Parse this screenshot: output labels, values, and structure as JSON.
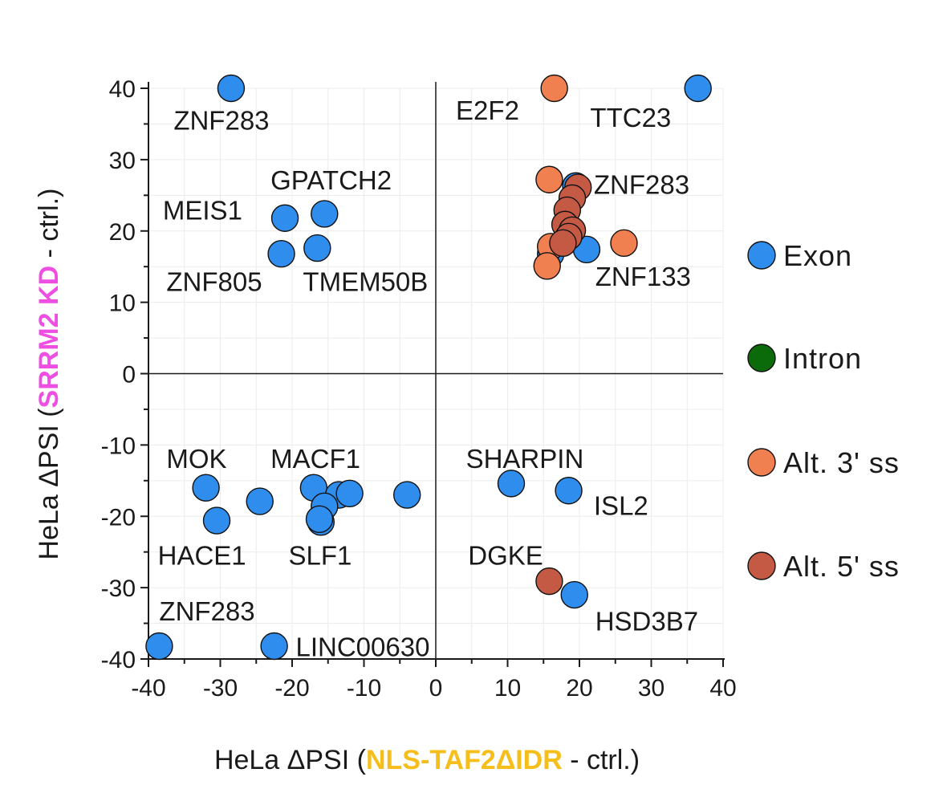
{
  "chart_data": {
    "type": "scatter",
    "xlim": [
      -40,
      40
    ],
    "ylim": [
      -40,
      40
    ],
    "xticks": [
      -40,
      -30,
      -20,
      -10,
      0,
      10,
      20,
      30,
      40
    ],
    "yticks": [
      -40,
      -30,
      -20,
      -10,
      0,
      10,
      20,
      30,
      40
    ],
    "grid": true,
    "legend_position": "right",
    "xlabel": {
      "prefix": "HeLa ΔPSI (",
      "highlight": "NLS-TAF2ΔIDR",
      "suffix": " - ctrl.)",
      "highlight_color": "#f6be1a"
    },
    "ylabel": {
      "prefix": "HeLa ΔPSI (",
      "highlight": "SRRM2 KD",
      "suffix": " - ctrl.)",
      "highlight_color": "#ee4fe2"
    },
    "legend": [
      {
        "name": "Exon",
        "color": "#2f8eed"
      },
      {
        "name": "Intron",
        "color": "#0b6b0b"
      },
      {
        "name": "Alt.  3' ss",
        "color": "#f0804f"
      },
      {
        "name": "Alt.  5' ss",
        "color": "#c45a44"
      }
    ],
    "series": [
      {
        "name": "Exon",
        "color": "#2f8eed",
        "points": [
          {
            "x": -28.5,
            "y": 40
          },
          {
            "x": -21,
            "y": 21.8
          },
          {
            "x": -15.5,
            "y": 22.4
          },
          {
            "x": -21.5,
            "y": 16.8
          },
          {
            "x": -16.5,
            "y": 17.6
          },
          {
            "x": 36.5,
            "y": 40
          },
          {
            "x": 19.5,
            "y": 26.3
          },
          {
            "x": 16,
            "y": 16.8
          },
          {
            "x": 21,
            "y": 17.4
          },
          {
            "x": -32,
            "y": -16
          },
          {
            "x": -30.5,
            "y": -20.6
          },
          {
            "x": -24.5,
            "y": -17.9
          },
          {
            "x": -17,
            "y": -16
          },
          {
            "x": -13.5,
            "y": -17
          },
          {
            "x": -12,
            "y": -16.8
          },
          {
            "x": -4,
            "y": -17
          },
          {
            "x": -15.5,
            "y": -18.6
          },
          {
            "x": -16,
            "y": -20.8
          },
          {
            "x": -16.2,
            "y": -20.4
          },
          {
            "x": 10.5,
            "y": -15.4
          },
          {
            "x": 18.5,
            "y": -16.4
          },
          {
            "x": 19.3,
            "y": -31
          },
          {
            "x": -38.5,
            "y": -38.2
          },
          {
            "x": -22.5,
            "y": -38.2
          }
        ]
      },
      {
        "name": "Alt. 3' ss",
        "color": "#f0804f",
        "points": [
          {
            "x": 16.5,
            "y": 40
          },
          {
            "x": 15.8,
            "y": 27.2
          },
          {
            "x": 26.2,
            "y": 18.3
          },
          {
            "x": 16,
            "y": 17.8
          },
          {
            "x": 15.5,
            "y": 15.1
          }
        ]
      },
      {
        "name": "Alt. 5' ss",
        "color": "#c45a44",
        "points": [
          {
            "x": 19.8,
            "y": 26.1
          },
          {
            "x": 19,
            "y": 24.6
          },
          {
            "x": 18.3,
            "y": 22.9
          },
          {
            "x": 18,
            "y": 20.9
          },
          {
            "x": 19,
            "y": 20.1
          },
          {
            "x": 18.5,
            "y": 19.2
          },
          {
            "x": 17.7,
            "y": 18.3
          },
          {
            "x": 15.8,
            "y": -29.1
          }
        ]
      }
    ],
    "annotations": [
      {
        "text": "ZNF283",
        "x": -36.5,
        "y": 34.2
      },
      {
        "text": "GPATCH2",
        "x": -23,
        "y": 25.8
      },
      {
        "text": "MEIS1",
        "x": -38,
        "y": 21.6
      },
      {
        "text": "ZNF805",
        "x": -37.5,
        "y": 11.6
      },
      {
        "text": "TMEM50B",
        "x": -18.5,
        "y": 11.6
      },
      {
        "text": "E2F2",
        "x": 2.8,
        "y": 35.6
      },
      {
        "text": "TTC23",
        "x": 21.5,
        "y": 34.6
      },
      {
        "text": "ZNF283",
        "x": 22,
        "y": 25.2
      },
      {
        "text": "ZNF133",
        "x": 22.2,
        "y": 12.3
      },
      {
        "text": "MOK",
        "x": -37.5,
        "y": -13.2
      },
      {
        "text": "MACF1",
        "x": -23,
        "y": -13.2
      },
      {
        "text": "HACE1",
        "x": -38.7,
        "y": -26.8
      },
      {
        "text": "SLF1",
        "x": -20.5,
        "y": -26.8
      },
      {
        "text": "SHARPIN",
        "x": 4.2,
        "y": -13.2
      },
      {
        "text": "ISL2",
        "x": 22,
        "y": -19.8
      },
      {
        "text": "DGKE",
        "x": 4.5,
        "y": -26.8
      },
      {
        "text": "HSD3B7",
        "x": 22.2,
        "y": -36
      },
      {
        "text": "ZNF283",
        "x": -38.5,
        "y": -34.6
      },
      {
        "text": "LINC00630",
        "x": -19.5,
        "y": -39.6
      }
    ]
  }
}
